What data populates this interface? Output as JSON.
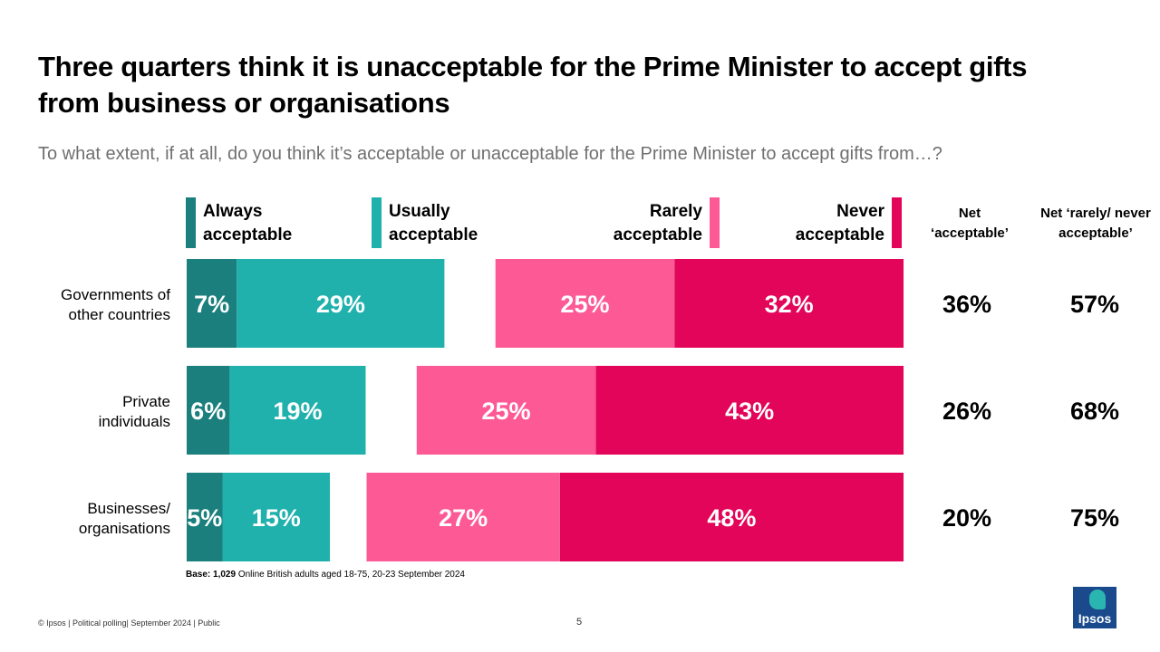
{
  "header": {
    "title": "Three quarters think it is unacceptable for the Prime Minister to accept gifts from business or organisations",
    "subtitle": "To what extent, if at all, do you think it’s acceptable or unacceptable for the Prime Minister to accept gifts from…?"
  },
  "legend": {
    "always": [
      "Always",
      "acceptable"
    ],
    "usually": [
      "Usually",
      "acceptable"
    ],
    "rarely": [
      "Rarely",
      "acceptable"
    ],
    "never": [
      "Never",
      "acceptable"
    ]
  },
  "net_headers": {
    "acceptable": [
      "Net",
      "‘acceptable’"
    ],
    "unacceptable": [
      "Net ‘rarely/ never",
      "acceptable’"
    ]
  },
  "colors": {
    "always": "#1a7f7d",
    "usually": "#20b1ad",
    "rarely": "#fd5a95",
    "never": "#e20559"
  },
  "chart_data": {
    "type": "bar",
    "categories": [
      [
        "Governments of",
        "other countries"
      ],
      [
        "Private",
        "individuals"
      ],
      [
        "Businesses/",
        "organisations"
      ]
    ],
    "series": [
      {
        "name": "Always acceptable",
        "key": "always",
        "values": [
          7,
          6,
          5
        ]
      },
      {
        "name": "Usually acceptable",
        "key": "usually",
        "values": [
          29,
          19,
          15
        ]
      },
      {
        "name": "Rarely acceptable",
        "key": "rarely",
        "values": [
          25,
          25,
          27
        ]
      },
      {
        "name": "Never acceptable",
        "key": "never",
        "values": [
          32,
          43,
          48
        ]
      }
    ],
    "net_acceptable": [
      "36%",
      "26%",
      "20%"
    ],
    "net_unacceptable": [
      "57%",
      "68%",
      "75%"
    ]
  },
  "base_note": {
    "label": "Base: 1,029",
    "text": " Online British adults aged 18-75, 20-23 September 2024"
  },
  "footer": {
    "text": "© Ipsos | Political polling| September 2024 | Public",
    "page": "5"
  },
  "logo": {
    "text": "Ipsos"
  }
}
